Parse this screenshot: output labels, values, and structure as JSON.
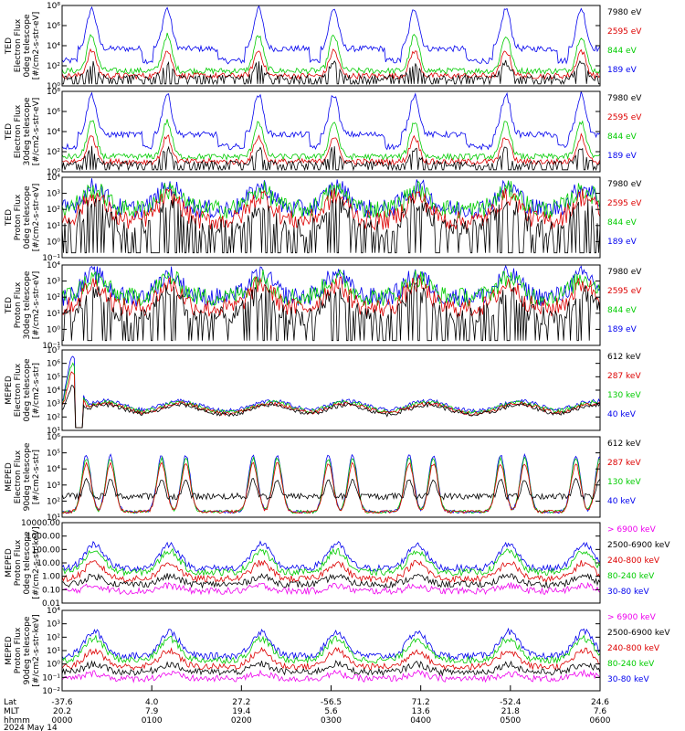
{
  "chart_data": {
    "type": "line",
    "panels": [
      {
        "ylabel": [
          "TED",
          "Electron Flux",
          "0deg telescope",
          "[#/cm2-s-str-eV]"
        ],
        "ticks": [
          "10⁰",
          "10²",
          "10⁴",
          "10⁶",
          "10⁸"
        ],
        "log": [
          0,
          8
        ],
        "legend": [
          {
            "name": "7980 eV",
            "color": "#000000"
          },
          {
            "name": "2595 eV",
            "color": "#dd0000"
          },
          {
            "name": "844 eV",
            "color": "#00cc00"
          },
          {
            "name": "189 eV",
            "color": "#0000ee"
          }
        ]
      },
      {
        "ylabel": [
          "TED",
          "Electron Flux",
          "30deg telescope",
          "[#/cm2-s-str-eV]"
        ],
        "ticks": [
          "10⁰",
          "10²",
          "10⁴",
          "10⁶",
          "10⁸"
        ],
        "log": [
          0,
          8
        ],
        "legend": [
          {
            "name": "7980 eV",
            "color": "#000000"
          },
          {
            "name": "2595 eV",
            "color": "#dd0000"
          },
          {
            "name": "844 eV",
            "color": "#00cc00"
          },
          {
            "name": "189 eV",
            "color": "#0000ee"
          }
        ]
      },
      {
        "ylabel": [
          "TED",
          "Proton Flux",
          "0deg telescope",
          "[#/cm2-s-str-eV]"
        ],
        "ticks": [
          "10⁻¹",
          "10⁰",
          "10¹",
          "10²",
          "10³",
          "10⁴"
        ],
        "log": [
          -1,
          4
        ],
        "legend": [
          {
            "name": "7980 eV",
            "color": "#000000"
          },
          {
            "name": "2595 eV",
            "color": "#dd0000"
          },
          {
            "name": "844 eV",
            "color": "#00cc00"
          },
          {
            "name": "189 eV",
            "color": "#0000ee"
          }
        ]
      },
      {
        "ylabel": [
          "TED",
          "Proton Flux",
          "30deg telescope",
          "[#/cm2-s-str-eV]"
        ],
        "ticks": [
          "10⁻¹",
          "10⁰",
          "10¹",
          "10²",
          "10³",
          "10⁴"
        ],
        "log": [
          -1,
          4
        ],
        "legend": [
          {
            "name": "7980 eV",
            "color": "#000000"
          },
          {
            "name": "2595 eV",
            "color": "#dd0000"
          },
          {
            "name": "844 eV",
            "color": "#00cc00"
          },
          {
            "name": "189 eV",
            "color": "#0000ee"
          }
        ]
      },
      {
        "ylabel": [
          "MEPED",
          "Electron Flux",
          "0deg telescope",
          "[#/cm2-s-str]"
        ],
        "ticks": [
          "10¹",
          "10²",
          "10³",
          "10⁴",
          "10⁵",
          "10⁶",
          "10⁷"
        ],
        "log": [
          1,
          7
        ],
        "legend": [
          {
            "name": "612 keV",
            "color": "#000000"
          },
          {
            "name": "287 keV",
            "color": "#dd0000"
          },
          {
            "name": "130 keV",
            "color": "#00cc00"
          },
          {
            "name": "40 keV",
            "color": "#0000ee"
          }
        ]
      },
      {
        "ylabel": [
          "MEPED",
          "Electron Flux",
          "90deg telescope",
          "[#/cm2-s-str]"
        ],
        "ticks": [
          "10¹",
          "10²",
          "10³",
          "10⁴",
          "10⁵",
          "10⁶"
        ],
        "log": [
          1,
          6
        ],
        "legend": [
          {
            "name": "612 keV",
            "color": "#000000"
          },
          {
            "name": "287 keV",
            "color": "#dd0000"
          },
          {
            "name": "130 keV",
            "color": "#00cc00"
          },
          {
            "name": "40 keV",
            "color": "#0000ee"
          }
        ]
      },
      {
        "ylabel": [
          "MEPED",
          "Proton Flux",
          "0deg telescope",
          "[#/cm2-s-str-keV]"
        ],
        "ticks": [
          "0.01",
          "0.10",
          "1.00",
          "10.00",
          "100.00",
          "1000.00",
          "10000.00"
        ],
        "log": [
          -2,
          4
        ],
        "legend": [
          {
            "name": "> 6900 keV",
            "color": "#ee00ee"
          },
          {
            "name": "2500-6900 keV",
            "color": "#000000"
          },
          {
            "name": "240-800 keV",
            "color": "#dd0000"
          },
          {
            "name": "80-240 keV",
            "color": "#00cc00"
          },
          {
            "name": "30-80 keV",
            "color": "#0000ee"
          }
        ]
      },
      {
        "ylabel": [
          "MEPED",
          "Proton Flux",
          "90deg telescope",
          "[#/cm2-s-str-keV]"
        ],
        "ticks": [
          "10⁻²",
          "10⁻¹",
          "10⁰",
          "10¹",
          "10²",
          "10³",
          "10⁴"
        ],
        "log": [
          -2,
          4
        ],
        "legend": [
          {
            "name": "> 6900 keV",
            "color": "#ee00ee"
          },
          {
            "name": "2500-6900 keV",
            "color": "#000000"
          },
          {
            "name": "240-800 keV",
            "color": "#dd0000"
          },
          {
            "name": "80-240 keV",
            "color": "#00cc00"
          },
          {
            "name": "30-80 keV",
            "color": "#0000ee"
          }
        ]
      }
    ],
    "x_axis": {
      "row_labels": [
        "Lat",
        "MLT",
        "hhmm"
      ],
      "ticks": [
        {
          "lat": "-37.6",
          "mlt": "20.2",
          "hhmm": "0000"
        },
        {
          "lat": "4.0",
          "mlt": "7.9",
          "hhmm": "0100"
        },
        {
          "lat": "27.2",
          "mlt": "19.4",
          "hhmm": "0200"
        },
        {
          "lat": "-56.5",
          "mlt": "5.6",
          "hhmm": "0300"
        },
        {
          "lat": "71.2",
          "mlt": "13.6",
          "hhmm": "0400"
        },
        {
          "lat": "-52.4",
          "mlt": "21.8",
          "hhmm": "0500"
        },
        {
          "lat": "24.6",
          "mlt": "7.6",
          "hhmm": "0600"
        }
      ],
      "date": "2024 May 14"
    }
  }
}
